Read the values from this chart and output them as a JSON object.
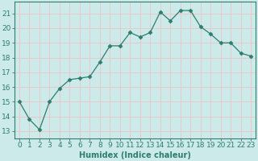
{
  "x": [
    0,
    1,
    2,
    3,
    4,
    5,
    6,
    7,
    8,
    9,
    10,
    11,
    12,
    13,
    14,
    15,
    16,
    17,
    18,
    19,
    20,
    21,
    22,
    23
  ],
  "y": [
    15.0,
    13.8,
    13.1,
    15.0,
    15.9,
    16.5,
    16.6,
    16.7,
    17.7,
    18.8,
    18.8,
    19.7,
    19.4,
    19.7,
    21.1,
    20.5,
    21.2,
    21.2,
    20.1,
    19.6,
    19.0,
    19.0,
    18.3,
    18.1
  ],
  "line_color": "#2e7d6e",
  "marker": "D",
  "marker_size": 2.5,
  "bg_color": "#cceaea",
  "grid_color": "#e8c8c8",
  "axis_color": "#2e7d6e",
  "tick_color": "#2e7d6e",
  "xlabel": "Humidex (Indice chaleur)",
  "xlabel_fontsize": 7,
  "ylim": [
    12.5,
    21.8
  ],
  "yticks": [
    13,
    14,
    15,
    16,
    17,
    18,
    19,
    20,
    21
  ],
  "xticks": [
    0,
    1,
    2,
    3,
    4,
    5,
    6,
    7,
    8,
    9,
    10,
    11,
    12,
    13,
    14,
    15,
    16,
    17,
    18,
    19,
    20,
    21,
    22,
    23
  ],
  "tick_fontsize": 6.5
}
